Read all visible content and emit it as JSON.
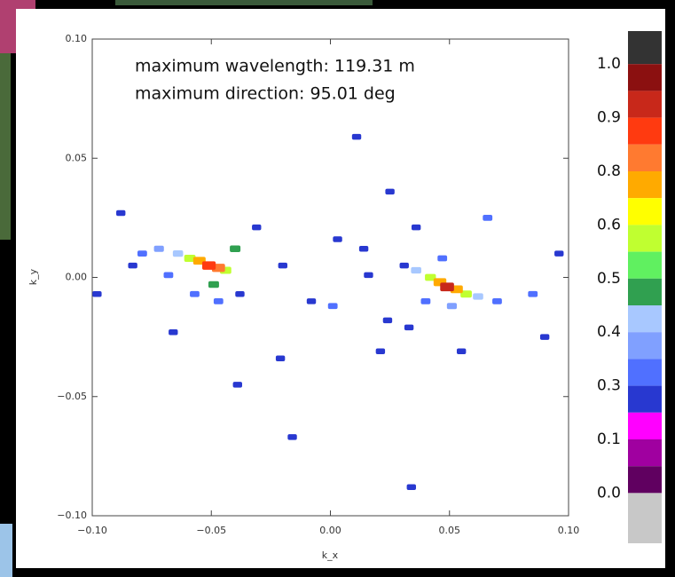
{
  "chart_data": {
    "type": "scatter",
    "annotations": [
      "maximum wavelength: 119.31 m",
      "maximum direction: 95.01 deg"
    ],
    "x_label": "k_x",
    "y_label": "k_y",
    "xlim": [
      -0.1,
      0.1
    ],
    "ylim": [
      -0.1,
      0.1
    ],
    "xticks": [
      {
        "value": -0.1,
        "label": "−0.10"
      },
      {
        "value": -0.05,
        "label": "−0.05"
      },
      {
        "value": 0,
        "label": "0.00"
      },
      {
        "value": 0.05,
        "label": "0.05"
      },
      {
        "value": 0.1,
        "label": "0.10"
      }
    ],
    "yticks": [
      {
        "value": -0.1,
        "label": "−0.10"
      },
      {
        "value": -0.05,
        "label": "−0.05"
      },
      {
        "value": 0,
        "label": "0.00"
      },
      {
        "value": 0.05,
        "label": "0.05"
      },
      {
        "value": 0.1,
        "label": "0.10"
      }
    ],
    "x": [
      -0.051,
      -0.047,
      -0.055,
      -0.059,
      -0.044,
      -0.064,
      -0.072,
      -0.079,
      -0.083,
      -0.04,
      -0.049,
      -0.057,
      -0.068,
      -0.088,
      -0.098,
      -0.066,
      -0.047,
      -0.038,
      -0.031,
      -0.02,
      -0.021,
      -0.008,
      0.001,
      0.003,
      0.014,
      0.016,
      0.049,
      0.046,
      0.053,
      0.042,
      0.057,
      0.036,
      0.062,
      0.07,
      0.031,
      0.047,
      0.051,
      0.04,
      0.066,
      0.085,
      0.096,
      0.09,
      0.055,
      0.025,
      0.036,
      0.033,
      0.024,
      0.021,
      0.011,
      0.034,
      -0.016,
      -0.039
    ],
    "y": [
      0.005,
      0.004,
      0.007,
      0.008,
      0.003,
      0.01,
      0.012,
      0.01,
      0.005,
      0.012,
      -0.003,
      -0.007,
      0.001,
      0.027,
      -0.007,
      -0.023,
      -0.01,
      -0.007,
      0.021,
      0.005,
      -0.034,
      -0.01,
      -0.012,
      0.016,
      0.012,
      0.001,
      -0.004,
      -0.002,
      -0.005,
      0.0,
      -0.007,
      0.003,
      -0.008,
      -0.01,
      0.005,
      0.008,
      -0.012,
      -0.01,
      0.025,
      -0.007,
      0.01,
      -0.025,
      -0.031,
      0.036,
      0.021,
      -0.021,
      -0.018,
      -0.031,
      0.059,
      -0.088,
      -0.067,
      -0.045
    ],
    "values": [
      0.9,
      0.85,
      0.75,
      0.6,
      0.6,
      0.45,
      0.4,
      0.35,
      0.3,
      0.5,
      0.5,
      0.35,
      0.35,
      0.3,
      0.3,
      0.3,
      0.35,
      0.3,
      0.3,
      0.3,
      0.3,
      0.3,
      0.35,
      0.3,
      0.3,
      0.3,
      0.95,
      0.8,
      0.75,
      0.55,
      0.6,
      0.45,
      0.45,
      0.35,
      0.3,
      0.35,
      0.4,
      0.35,
      0.35,
      0.35,
      0.3,
      0.3,
      0.3,
      0.3,
      0.3,
      0.3,
      0.3,
      0.3,
      0.3,
      0.3,
      0.3,
      0.3
    ],
    "colorbar": {
      "colors": [
        "#333333",
        "#8b1010",
        "#c8281a",
        "#ff3a10",
        "#ff7a30",
        "#ffaa00",
        "#ffff00",
        "#c0ff30",
        "#60f060",
        "#30a050",
        "#a8c8ff",
        "#80a0ff",
        "#5070ff",
        "#2838d0",
        "#ff00ff",
        "#a000a0",
        "#600060",
        "#c8c8c8"
      ],
      "labels": [
        null,
        {
          "value": 1,
          "label": "1.0"
        },
        null,
        {
          "value": 0.9,
          "label": "0.9"
        },
        null,
        {
          "value": 0.8,
          "label": "0.8"
        },
        null,
        {
          "value": 0.6,
          "label": "0.6"
        },
        null,
        {
          "value": 0.5,
          "label": "0.5"
        },
        null,
        {
          "value": 0.4,
          "label": "0.4"
        },
        null,
        {
          "value": 0.3,
          "label": "0.3"
        },
        null,
        {
          "value": 0.1,
          "label": "0.1"
        },
        null,
        {
          "value": 0,
          "label": "0.0"
        }
      ]
    }
  }
}
